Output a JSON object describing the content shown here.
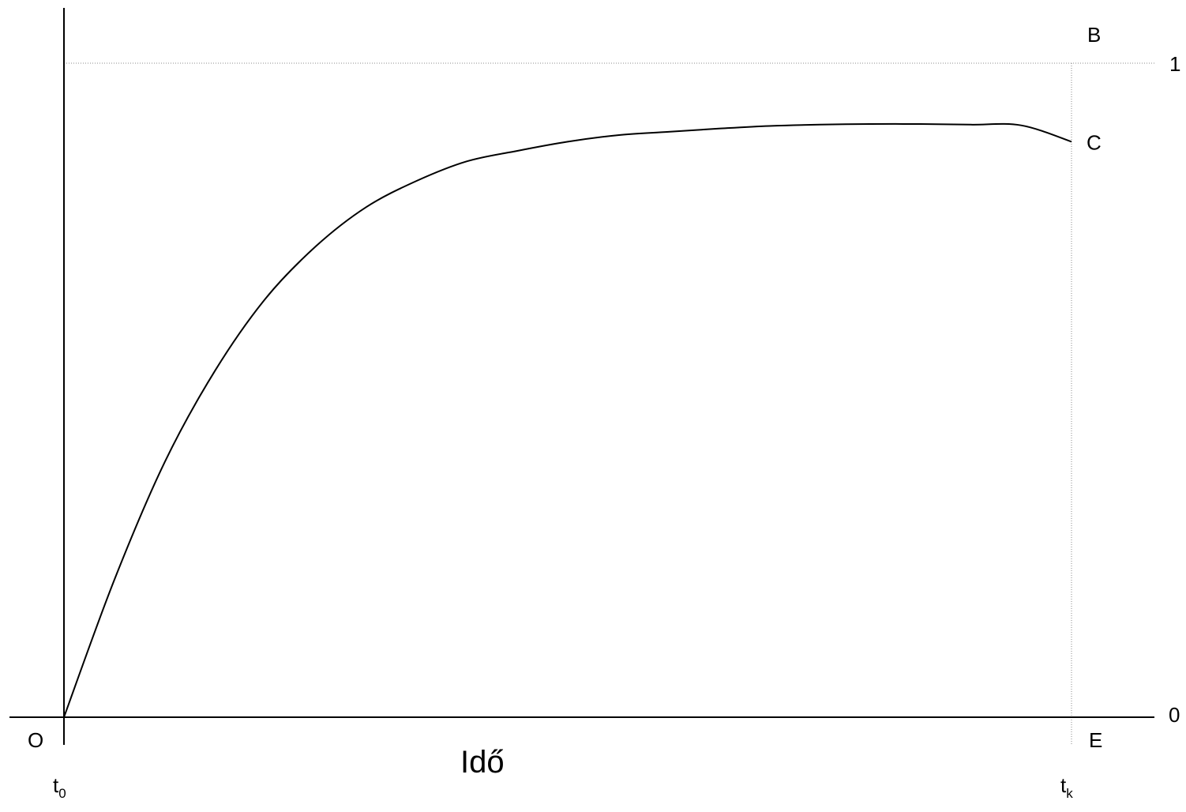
{
  "chart_data": {
    "type": "line",
    "xlabel": "Idő",
    "x_ticks": [
      {
        "main": "t",
        "sub": "0"
      },
      {
        "main": "t",
        "sub": "k"
      }
    ],
    "y_ticks": [
      "0",
      "1"
    ],
    "xlim": [
      0,
      1
    ],
    "ylim": [
      0,
      1
    ],
    "grid": false,
    "point_labels": {
      "origin": "O",
      "B": "B",
      "C": "C",
      "E": "E"
    },
    "reference_lines": [
      {
        "kind": "horizontal",
        "y": 1,
        "style": "dotted"
      },
      {
        "kind": "vertical",
        "x": 1,
        "style": "dotted"
      }
    ],
    "series": [
      {
        "x": [
          0,
          0.05,
          0.1,
          0.15,
          0.2,
          0.25,
          0.3,
          0.35,
          0.4,
          0.45,
          0.5,
          0.55,
          0.6,
          0.65,
          0.7,
          0.75,
          0.8,
          0.85,
          0.9,
          0.95,
          1.0
        ],
        "y": [
          0,
          0.21,
          0.39,
          0.53,
          0.64,
          0.72,
          0.78,
          0.82,
          0.85,
          0.866,
          0.88,
          0.89,
          0.895,
          0.9,
          0.904,
          0.906,
          0.907,
          0.907,
          0.906,
          0.905,
          0.88
        ]
      }
    ],
    "colors": {
      "line": "#000000",
      "reference": "#888888"
    }
  }
}
